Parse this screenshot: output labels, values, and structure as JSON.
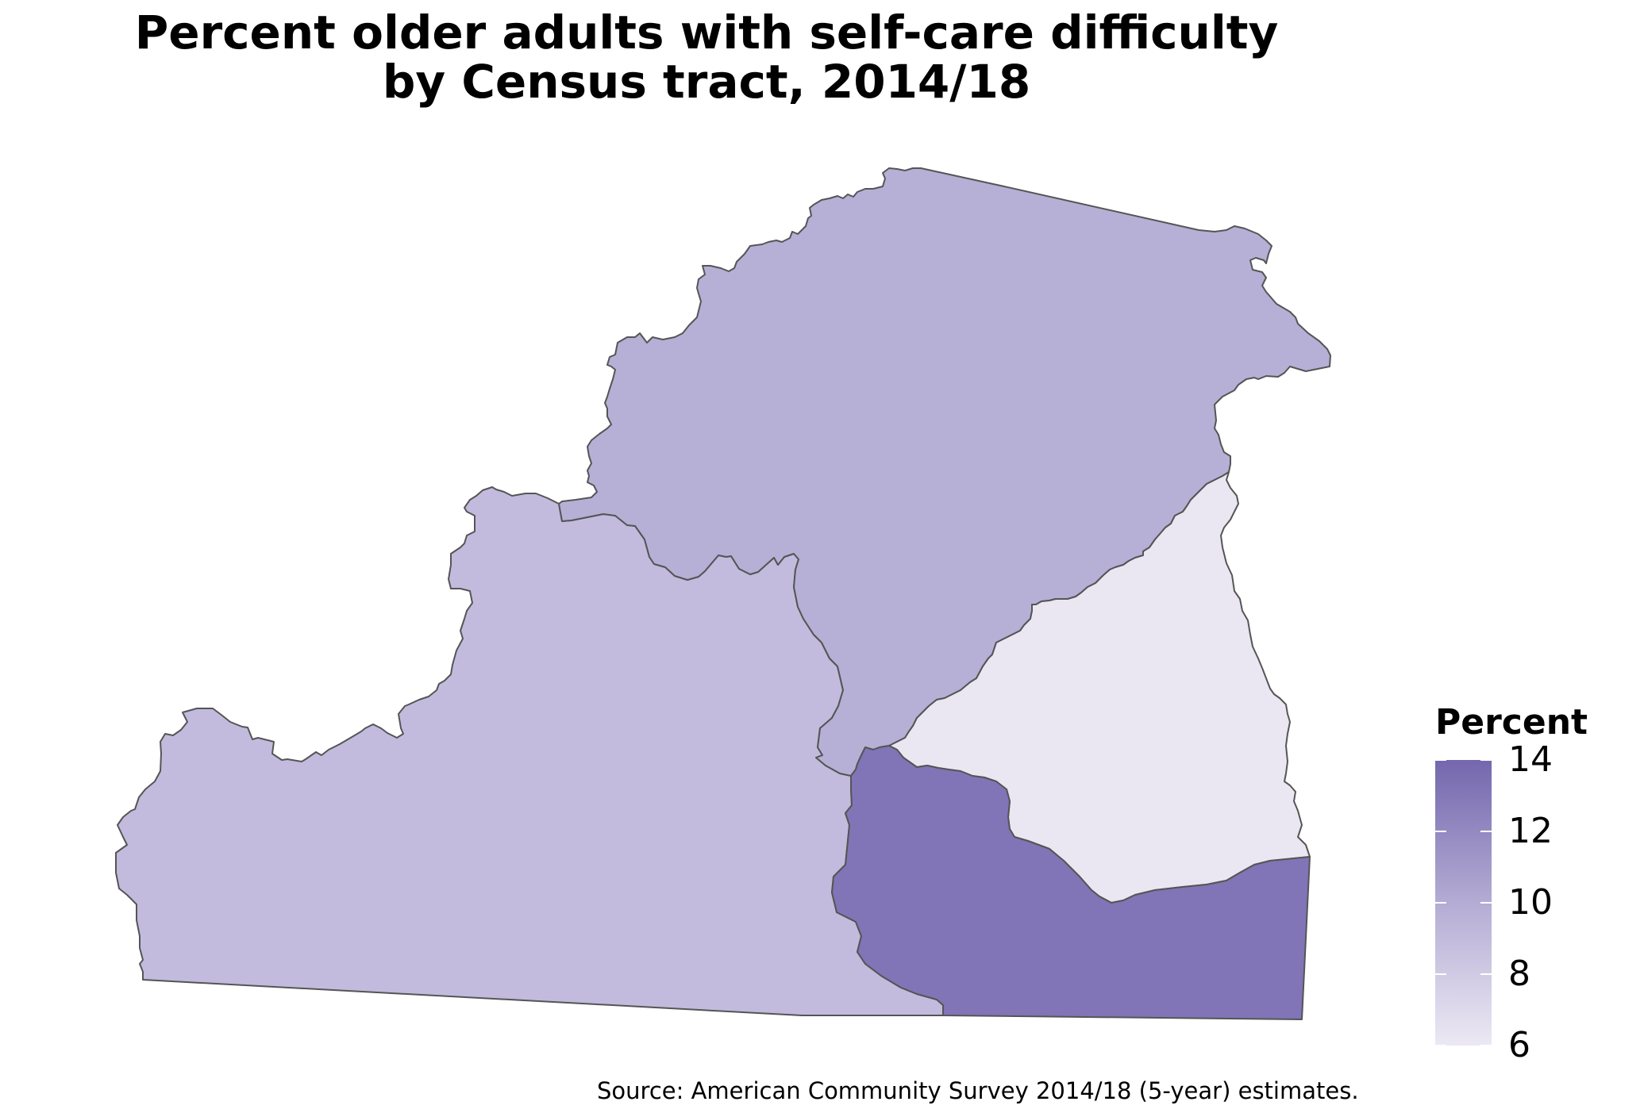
{
  "title": {
    "line1": "Percent older adults with self-care difficulty",
    "line2": "by Census tract, 2014/18"
  },
  "legend": {
    "title": "Percent",
    "ticks": [
      14,
      12,
      10,
      8,
      6
    ],
    "ticks_text": [
      "14",
      "12",
      "10",
      "8",
      "6"
    ],
    "min": 6,
    "max": 14,
    "low_color": "#ece9f4",
    "high_color": "#7467ae"
  },
  "source": "Source: American Community Survey 2014/18 (5-year) estimates.",
  "tracts": [
    {
      "id": "north",
      "percent": 9.8,
      "color": "#b6afd6"
    },
    {
      "id": "west",
      "percent": 9.0,
      "color": "#c2bbdd"
    },
    {
      "id": "east",
      "percent": 6.5,
      "color": "#eae7f3"
    },
    {
      "id": "south",
      "percent": 13.2,
      "color": "#8175b7"
    }
  ],
  "outline_color": "#555555"
}
